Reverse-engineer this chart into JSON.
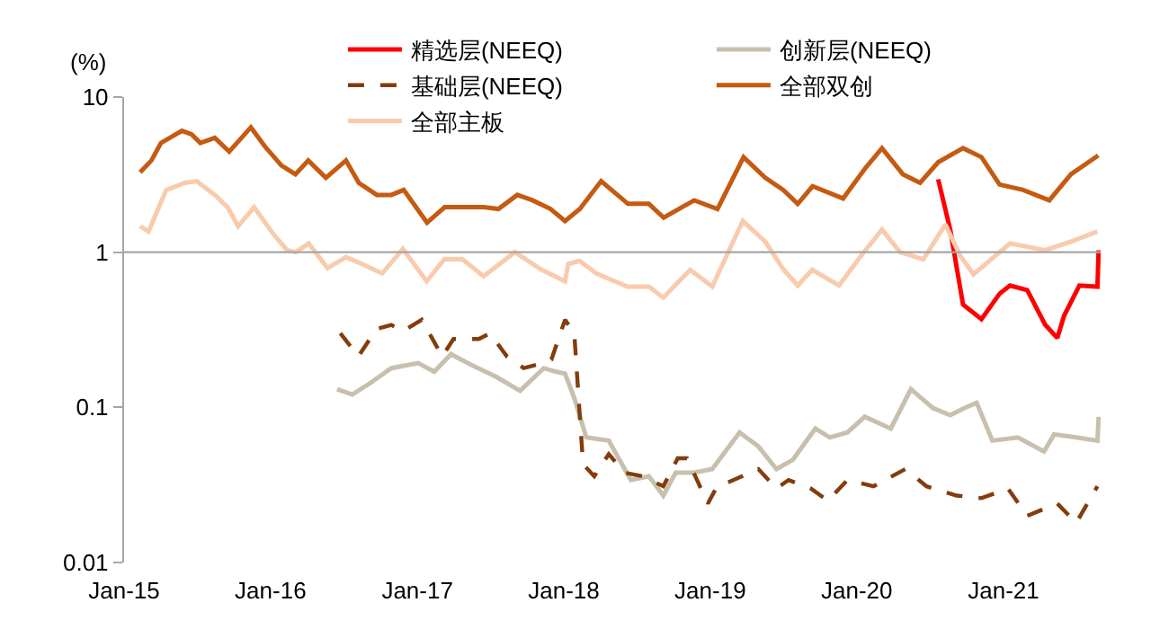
{
  "chart_data": {
    "type": "line",
    "ylabel": "(%)",
    "log": "y",
    "legend": "top",
    "xlim": [
      "2015-01-01",
      "2021-08-31"
    ],
    "xticks": [
      {
        "value": "2015-01-01",
        "label": "Jan-15"
      },
      {
        "value": "2016-01-01",
        "label": "Jan-16"
      },
      {
        "value": "2017-01-01",
        "label": "Jan-17"
      },
      {
        "value": "2018-01-01",
        "label": "Jan-18"
      },
      {
        "value": "2019-01-01",
        "label": "Jan-19"
      },
      {
        "value": "2020-01-01",
        "label": "Jan-20"
      },
      {
        "value": "2021-01-01",
        "label": "Jan-21"
      }
    ],
    "ylim": [
      0.01,
      10
    ],
    "yticks": [
      0.01,
      0.1,
      1,
      10
    ],
    "ref_lines": [
      {
        "axis": "y",
        "value": 1,
        "color": "#a6a6a6"
      }
    ],
    "series": [
      {
        "name": "精选层(NEEQ)",
        "color": "#ff0000",
        "line_style": "solid",
        "x": [
          "2020-07-22",
          "2020-08-21",
          "2020-09-22",
          "2020-11-07",
          "2020-12-22",
          "2021-01-17",
          "2021-03-01",
          "2021-04-15",
          "2021-05-15",
          "2021-06-01",
          "2021-07-09",
          "2021-08-23",
          "2021-08-26"
        ],
        "values": [
          2.95,
          1.4,
          0.46,
          0.37,
          0.54,
          0.61,
          0.57,
          0.34,
          0.28,
          0.39,
          0.61,
          0.6,
          1.03
        ]
      },
      {
        "name": "创新层(NEEQ)",
        "color": "#c9bfae",
        "line_style": "solid",
        "x": [
          "2016-06-15",
          "2016-07-23",
          "2016-09-08",
          "2016-10-28",
          "2017-01-03",
          "2017-02-12",
          "2017-03-26",
          "2017-05-15",
          "2017-07-17",
          "2017-09-14",
          "2017-11-12",
          "2017-12-12",
          "2018-01-04",
          "2018-01-27",
          "2018-02-26",
          "2018-04-23",
          "2018-06-17",
          "2018-08-01",
          "2018-09-06",
          "2018-10-07",
          "2018-11-21",
          "2019-01-06",
          "2019-03-15",
          "2019-05-01",
          "2019-06-15",
          "2019-07-26",
          "2019-09-20",
          "2019-10-26",
          "2019-12-09",
          "2020-01-21",
          "2020-03-26",
          "2020-05-15",
          "2020-07-09",
          "2020-08-21",
          "2020-09-26",
          "2020-10-26",
          "2020-12-04",
          "2021-02-06",
          "2021-04-12",
          "2021-05-07",
          "2021-07-01",
          "2021-08-23",
          "2021-08-26"
        ],
        "values": [
          0.131,
          0.121,
          0.145,
          0.179,
          0.193,
          0.17,
          0.22,
          0.188,
          0.157,
          0.128,
          0.179,
          0.17,
          0.165,
          0.115,
          0.064,
          0.061,
          0.034,
          0.036,
          0.027,
          0.038,
          0.038,
          0.04,
          0.069,
          0.056,
          0.04,
          0.046,
          0.073,
          0.064,
          0.069,
          0.087,
          0.073,
          0.131,
          0.099,
          0.089,
          0.099,
          0.107,
          0.061,
          0.064,
          0.052,
          0.067,
          0.064,
          0.061,
          0.087
        ]
      },
      {
        "name": "基础层(NEEQ)",
        "color": "#843c0c",
        "line_style": "dashed",
        "x": [
          "2016-06-23",
          "2016-08-07",
          "2016-09-21",
          "2016-10-28",
          "2016-11-26",
          "2017-01-12",
          "2017-03-04",
          "2017-04-01",
          "2017-06-03",
          "2017-07-01",
          "2017-08-12",
          "2017-09-23",
          "2017-11-12",
          "2017-12-01",
          "2018-01-04",
          "2018-01-27",
          "2018-02-18",
          "2018-03-18",
          "2018-04-23",
          "2018-06-01",
          "2018-07-15",
          "2018-09-06",
          "2018-10-12",
          "2018-11-04",
          "2018-12-26",
          "2019-01-18",
          "2019-02-04",
          "2019-05-01",
          "2019-06-15",
          "2019-07-15",
          "2019-09-09",
          "2019-10-21",
          "2019-12-09",
          "2020-02-12",
          "2020-05-01",
          "2020-06-23",
          "2020-09-06",
          "2020-11-07",
          "2021-01-12",
          "2021-03-01",
          "2021-05-15",
          "2021-07-01",
          "2021-08-23"
        ],
        "values": [
          0.3,
          0.213,
          0.32,
          0.34,
          0.31,
          0.367,
          0.213,
          0.276,
          0.276,
          0.3,
          0.213,
          0.179,
          0.193,
          0.203,
          0.367,
          0.3,
          0.043,
          0.036,
          0.05,
          0.038,
          0.036,
          0.031,
          0.047,
          0.047,
          0.024,
          0.031,
          0.032,
          0.04,
          0.03,
          0.034,
          0.03,
          0.025,
          0.034,
          0.031,
          0.04,
          0.031,
          0.027,
          0.026,
          0.03,
          0.02,
          0.024,
          0.018,
          0.031
        ]
      },
      {
        "name": "全部双创",
        "color": "#c55a11",
        "line_style": "solid",
        "x": [
          "2015-02-10",
          "2015-03-10",
          "2015-04-03",
          "2015-04-25",
          "2015-05-25",
          "2015-06-18",
          "2015-07-10",
          "2015-08-15",
          "2015-09-20",
          "2015-11-13",
          "2015-12-18",
          "2016-01-28",
          "2016-03-03",
          "2016-04-04",
          "2016-05-18",
          "2016-07-07",
          "2016-08-08",
          "2016-09-22",
          "2016-10-28",
          "2016-11-28",
          "2017-01-25",
          "2017-03-10",
          "2017-04-25",
          "2017-06-15",
          "2017-07-22",
          "2017-09-07",
          "2017-10-15",
          "2017-11-29",
          "2018-01-04",
          "2018-02-10",
          "2018-04-04",
          "2018-06-10",
          "2018-08-01",
          "2018-09-07",
          "2018-11-22",
          "2019-01-19",
          "2019-03-25",
          "2019-05-18",
          "2019-07-02",
          "2019-08-07",
          "2019-09-13",
          "2019-11-28",
          "2020-01-21",
          "2020-03-04",
          "2020-04-25",
          "2020-06-07",
          "2020-07-22",
          "2020-09-22",
          "2020-11-07",
          "2020-12-22",
          "2021-02-19",
          "2021-04-25",
          "2021-06-18",
          "2021-08-25"
        ],
        "values": [
          3.27,
          3.9,
          5.06,
          5.46,
          6.06,
          5.75,
          5.06,
          5.46,
          4.45,
          6.38,
          4.8,
          3.62,
          3.18,
          3.9,
          3.02,
          3.9,
          2.8,
          2.34,
          2.34,
          2.52,
          1.55,
          1.95,
          1.95,
          1.95,
          1.9,
          2.34,
          2.16,
          1.9,
          1.59,
          1.9,
          2.87,
          2.05,
          2.05,
          1.67,
          2.16,
          1.9,
          4.1,
          3.02,
          2.52,
          2.05,
          2.66,
          2.22,
          3.44,
          4.68,
          3.18,
          2.8,
          3.8,
          4.68,
          4.1,
          2.73,
          2.52,
          2.16,
          3.18,
          4.2
        ]
      },
      {
        "name": "全部主板",
        "color": "#f8cbad",
        "line_style": "solid",
        "x": [
          "2015-02-10",
          "2015-03-03",
          "2015-04-16",
          "2015-06-01",
          "2015-07-01",
          "2015-08-15",
          "2015-09-16",
          "2015-10-12",
          "2015-11-21",
          "2016-01-06",
          "2016-02-11",
          "2016-03-04",
          "2016-04-05",
          "2016-05-22",
          "2016-07-07",
          "2016-08-16",
          "2016-10-05",
          "2016-11-26",
          "2017-01-24",
          "2017-03-09",
          "2017-04-23",
          "2017-06-15",
          "2017-09-01",
          "2017-11-07",
          "2018-01-04",
          "2018-01-12",
          "2018-02-09",
          "2018-03-23",
          "2018-06-09",
          "2018-08-01",
          "2018-09-06",
          "2018-11-12",
          "2019-01-06",
          "2019-03-23",
          "2019-05-18",
          "2019-07-03",
          "2019-08-07",
          "2019-09-12",
          "2019-11-18",
          "2020-01-12",
          "2020-03-04",
          "2020-04-18",
          "2020-06-15",
          "2020-08-09",
          "2020-09-15",
          "2020-10-18",
          "2021-01-17",
          "2021-04-15",
          "2021-06-18",
          "2021-08-23"
        ],
        "values": [
          1.47,
          1.36,
          2.52,
          2.8,
          2.87,
          2.34,
          1.95,
          1.47,
          1.95,
          1.33,
          1.03,
          1.0,
          1.14,
          0.79,
          0.93,
          0.84,
          0.73,
          1.05,
          0.65,
          0.9,
          0.9,
          0.7,
          1.0,
          0.77,
          0.65,
          0.84,
          0.88,
          0.73,
          0.6,
          0.6,
          0.51,
          0.77,
          0.6,
          1.59,
          1.17,
          0.77,
          0.61,
          0.77,
          0.61,
          0.95,
          1.4,
          1.0,
          0.9,
          1.51,
          0.95,
          0.72,
          1.14,
          1.03,
          1.17,
          1.36
        ]
      }
    ]
  }
}
